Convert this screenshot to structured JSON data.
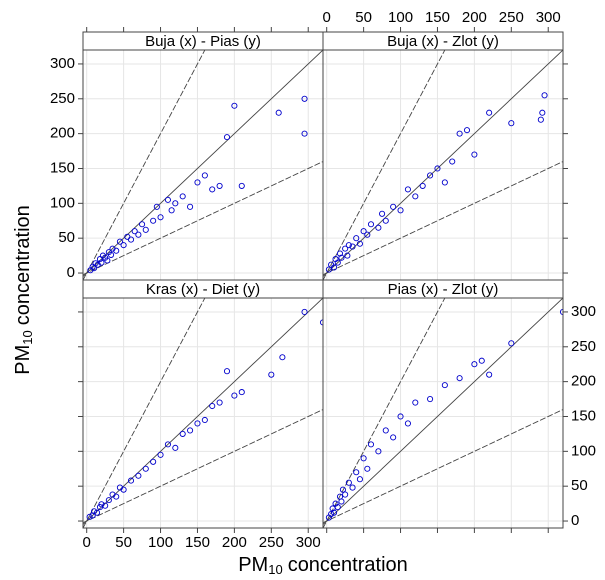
{
  "chart_data": {
    "type": "scatter",
    "x_label": [
      "PM",
      "10",
      "concentration"
    ],
    "y_label": [
      "PM",
      "10",
      "concentration"
    ],
    "xlim": [
      -5,
      320
    ],
    "ylim": [
      -10,
      320
    ],
    "xticks": [
      0,
      50,
      100,
      150,
      200,
      250,
      300
    ],
    "yticks": [
      0,
      50,
      100,
      150,
      200,
      250,
      300
    ],
    "grid": true,
    "color": "#0000cc",
    "reference_slopes": [
      0.5,
      1,
      2
    ],
    "panels": [
      {
        "title": "Buja (x) - Pias (y)",
        "x": [
          5,
          8,
          10,
          12,
          15,
          18,
          20,
          22,
          25,
          28,
          30,
          33,
          35,
          40,
          45,
          50,
          55,
          60,
          65,
          70,
          75,
          80,
          90,
          95,
          100,
          110,
          115,
          120,
          130,
          140,
          150,
          160,
          170,
          180,
          190,
          200,
          210,
          260,
          295,
          295
        ],
        "y": [
          4,
          9,
          7,
          14,
          12,
          20,
          15,
          25,
          22,
          18,
          30,
          26,
          35,
          32,
          45,
          40,
          52,
          48,
          60,
          55,
          70,
          62,
          75,
          95,
          80,
          105,
          90,
          100,
          110,
          95,
          130,
          140,
          120,
          125,
          195,
          240,
          125,
          230,
          250,
          200
        ]
      },
      {
        "title": "Buja (x) - Zlot (y)",
        "x": [
          3,
          6,
          10,
          12,
          15,
          18,
          20,
          25,
          28,
          30,
          35,
          40,
          45,
          50,
          55,
          60,
          70,
          75,
          80,
          90,
          100,
          110,
          120,
          130,
          140,
          150,
          160,
          170,
          180,
          190,
          200,
          220,
          250,
          290,
          292,
          295
        ],
        "y": [
          5,
          12,
          8,
          20,
          15,
          28,
          22,
          35,
          25,
          40,
          38,
          50,
          42,
          60,
          55,
          70,
          65,
          85,
          75,
          95,
          90,
          120,
          110,
          125,
          140,
          150,
          130,
          160,
          200,
          205,
          170,
          230,
          215,
          220,
          230,
          255
        ]
      },
      {
        "title": "Kras (x) - Diet (y)",
        "x": [
          4,
          8,
          10,
          14,
          18,
          20,
          25,
          30,
          35,
          40,
          45,
          50,
          60,
          70,
          80,
          90,
          100,
          110,
          120,
          130,
          140,
          150,
          160,
          170,
          180,
          190,
          200,
          210,
          250,
          265,
          295,
          320
        ],
        "y": [
          6,
          8,
          14,
          12,
          20,
          24,
          22,
          30,
          38,
          35,
          48,
          45,
          58,
          65,
          75,
          85,
          95,
          110,
          105,
          125,
          130,
          140,
          145,
          165,
          170,
          215,
          180,
          185,
          210,
          235,
          300,
          285
        ]
      },
      {
        "title": "Pias (x) - Zlot (y)",
        "x": [
          3,
          6,
          8,
          10,
          12,
          15,
          18,
          20,
          22,
          25,
          30,
          35,
          40,
          45,
          50,
          55,
          60,
          70,
          80,
          90,
          100,
          110,
          120,
          140,
          160,
          180,
          200,
          210,
          220,
          250,
          320
        ],
        "y": [
          5,
          10,
          18,
          12,
          25,
          20,
          35,
          28,
          45,
          38,
          55,
          48,
          70,
          60,
          90,
          75,
          110,
          100,
          130,
          120,
          150,
          140,
          170,
          175,
          195,
          205,
          225,
          230,
          210,
          255,
          300
        ]
      }
    ]
  }
}
